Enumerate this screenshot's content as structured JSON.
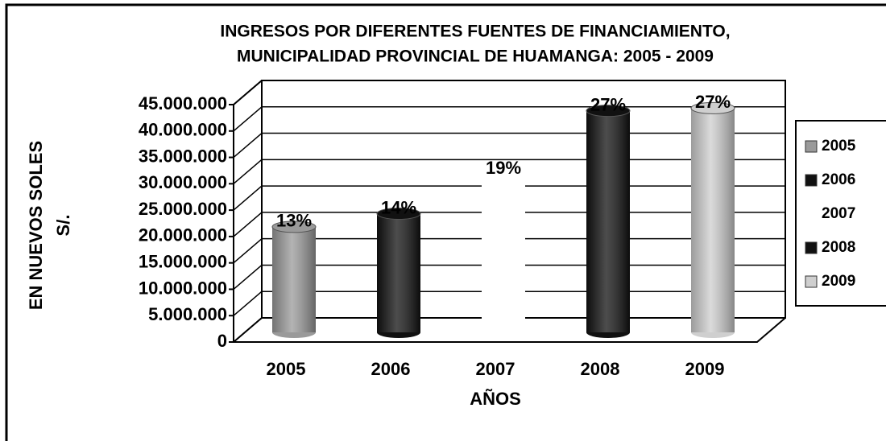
{
  "chart_data": {
    "type": "bar",
    "title": "INGRESOS POR DIFERENTES FUENTES DE FINANCIAMIENTO,",
    "subtitle": "MUNICIPALIDAD PROVINCIAL DE HUAMANGA: 2005 - 2009",
    "y_label": "EN NUEVOS SOLES",
    "y_label_unit": "S/.",
    "x_label": "AÑOS",
    "categories": [
      "2005",
      "2006",
      "2007",
      "2008",
      "2009"
    ],
    "values": [
      20000000,
      22500000,
      30000000,
      42000000,
      42500000
    ],
    "annotations": [
      "13%",
      "14%",
      "19%",
      "27%",
      "27%"
    ],
    "colors": [
      "#9a9a9a",
      "#111111",
      "#ffffff",
      "#111111",
      "#cfcfcf"
    ],
    "ylim": [
      0,
      45000000
    ],
    "yticks": [
      0,
      {
        "value": 5000000,
        "label": "5.000.000"
      },
      {
        "value": 10000000,
        "label": "10.000.000"
      },
      {
        "value": 15000000,
        "label": "15.000.000"
      },
      {
        "value": 20000000,
        "label": "20.000.000"
      },
      {
        "value": 25000000,
        "label": "25.000.000"
      },
      {
        "value": 30000000,
        "label": "30.000.000"
      },
      {
        "value": 35000000,
        "label": "35.000.000"
      },
      {
        "value": 40000000,
        "label": "40.000.000"
      },
      {
        "value": 45000000,
        "label": "45.000.000"
      }
    ],
    "grid": true,
    "legend": "right"
  }
}
